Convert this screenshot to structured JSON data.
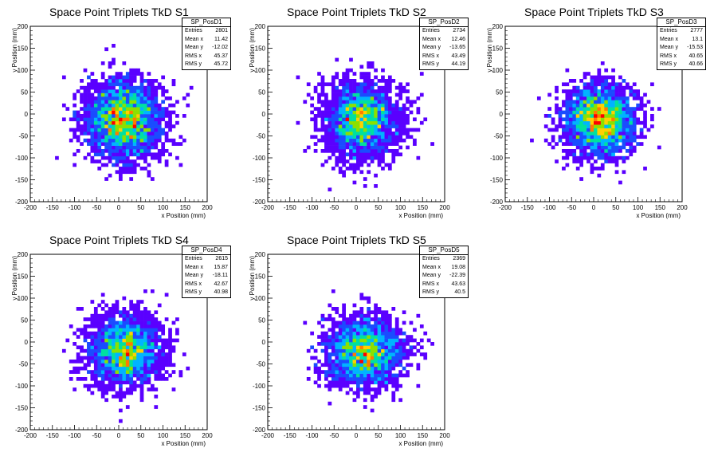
{
  "colors": {
    "palette": [
      "#5a00ff",
      "#1a4cff",
      "#00b4ff",
      "#00e0a0",
      "#8ce000",
      "#ffd000",
      "#ff7a00",
      "#ff0000"
    ]
  },
  "chart_data": [
    {
      "type": "heatmap",
      "title": "Space Point Triplets TkD S1",
      "xlabel": "x Position (mm)",
      "ylabel": "y Position (mm)",
      "xlim": [
        -200,
        200
      ],
      "ylim": [
        -200,
        200
      ],
      "xticks": [
        "-200",
        "-150",
        "-100",
        "-50",
        "0",
        "50",
        "100",
        "150",
        "200"
      ],
      "yticks": [
        "-200",
        "-150",
        "-100",
        "-50",
        "0",
        "50",
        "100",
        "150",
        "200"
      ],
      "bin_size_mm": 8,
      "stats": {
        "name": "SP_PosD1",
        "rows": [
          {
            "label": "Entries",
            "value": "2801"
          },
          {
            "label": "Mean x",
            "value": "11.42"
          },
          {
            "label": "Mean y",
            "value": "-12.02"
          },
          {
            "label": "RMS x",
            "value": "45.37"
          },
          {
            "label": "RMS y",
            "value": "45.72"
          }
        ]
      },
      "distribution": {
        "entries": 2801,
        "mean_x": 11.42,
        "mean_y": -12.02,
        "rms_x": 45.37,
        "rms_y": 45.72
      }
    },
    {
      "type": "heatmap",
      "title": "Space Point Triplets TkD S2",
      "xlabel": "x Position (mm)",
      "ylabel": "y Position (mm)",
      "xlim": [
        -200,
        200
      ],
      "ylim": [
        -200,
        200
      ],
      "xticks": [
        "-200",
        "-150",
        "-100",
        "-50",
        "0",
        "50",
        "100",
        "150",
        "200"
      ],
      "yticks": [
        "-200",
        "-150",
        "-100",
        "-50",
        "0",
        "50",
        "100",
        "150",
        "200"
      ],
      "bin_size_mm": 8,
      "stats": {
        "name": "SP_PosD2",
        "rows": [
          {
            "label": "Entries",
            "value": "2734"
          },
          {
            "label": "Mean x",
            "value": "12.46"
          },
          {
            "label": "Mean y",
            "value": "-13.65"
          },
          {
            "label": "RMS x",
            "value": "43.49"
          },
          {
            "label": "RMS y",
            "value": "44.19"
          }
        ]
      },
      "distribution": {
        "entries": 2734,
        "mean_x": 12.46,
        "mean_y": -13.65,
        "rms_x": 43.49,
        "rms_y": 44.19
      }
    },
    {
      "type": "heatmap",
      "title": "Space Point Triplets TkD S3",
      "xlabel": "x Position (mm)",
      "ylabel": "y Position (mm)",
      "xlim": [
        -200,
        200
      ],
      "ylim": [
        -200,
        200
      ],
      "xticks": [
        "-200",
        "-150",
        "-100",
        "-50",
        "0",
        "50",
        "100",
        "150",
        "200"
      ],
      "yticks": [
        "-200",
        "-150",
        "-100",
        "-50",
        "0",
        "50",
        "100",
        "150",
        "200"
      ],
      "bin_size_mm": 8,
      "stats": {
        "name": "SP_PosD3",
        "rows": [
          {
            "label": "Entries",
            "value": "2777"
          },
          {
            "label": "Mean x",
            "value": "13.1"
          },
          {
            "label": "Mean y",
            "value": "-15.53"
          },
          {
            "label": "RMS x",
            "value": "40.65"
          },
          {
            "label": "RMS y",
            "value": "40.66"
          }
        ]
      },
      "distribution": {
        "entries": 2777,
        "mean_x": 13.1,
        "mean_y": -15.53,
        "rms_x": 40.65,
        "rms_y": 40.66
      }
    },
    {
      "type": "heatmap",
      "title": "Space Point Triplets TkD S4",
      "xlabel": "x Position (mm)",
      "ylabel": "y Position (mm)",
      "xlim": [
        -200,
        200
      ],
      "ylim": [
        -200,
        200
      ],
      "xticks": [
        "-200",
        "-150",
        "-100",
        "-50",
        "0",
        "50",
        "100",
        "150",
        "200"
      ],
      "yticks": [
        "-200",
        "-150",
        "-100",
        "-50",
        "0",
        "50",
        "100",
        "150",
        "200"
      ],
      "bin_size_mm": 8,
      "stats": {
        "name": "SP_PosD4",
        "rows": [
          {
            "label": "Entries",
            "value": "2615"
          },
          {
            "label": "Mean x",
            "value": "15.87"
          },
          {
            "label": "Mean y",
            "value": "-18.11"
          },
          {
            "label": "RMS x",
            "value": "42.67"
          },
          {
            "label": "RMS y",
            "value": "40.98"
          }
        ]
      },
      "distribution": {
        "entries": 2615,
        "mean_x": 15.87,
        "mean_y": -18.11,
        "rms_x": 42.67,
        "rms_y": 40.98
      }
    },
    {
      "type": "heatmap",
      "title": "Space Point Triplets TkD S5",
      "xlabel": "x Position (mm)",
      "ylabel": "y Position (mm)",
      "xlim": [
        -200,
        200
      ],
      "ylim": [
        -200,
        200
      ],
      "xticks": [
        "-200",
        "-150",
        "-100",
        "-50",
        "0",
        "50",
        "100",
        "150",
        "200"
      ],
      "yticks": [
        "-200",
        "-150",
        "-100",
        "-50",
        "0",
        "50",
        "100",
        "150",
        "200"
      ],
      "bin_size_mm": 8,
      "stats": {
        "name": "SP_PosD5",
        "rows": [
          {
            "label": "Entries",
            "value": "2369"
          },
          {
            "label": "Mean x",
            "value": "19.08"
          },
          {
            "label": "Mean y",
            "value": "-22.39"
          },
          {
            "label": "RMS x",
            "value": "43.63"
          },
          {
            "label": "RMS y",
            "value": "40.5"
          }
        ]
      },
      "distribution": {
        "entries": 2369,
        "mean_x": 19.08,
        "mean_y": -22.39,
        "rms_x": 43.63,
        "rms_y": 40.5
      }
    }
  ]
}
